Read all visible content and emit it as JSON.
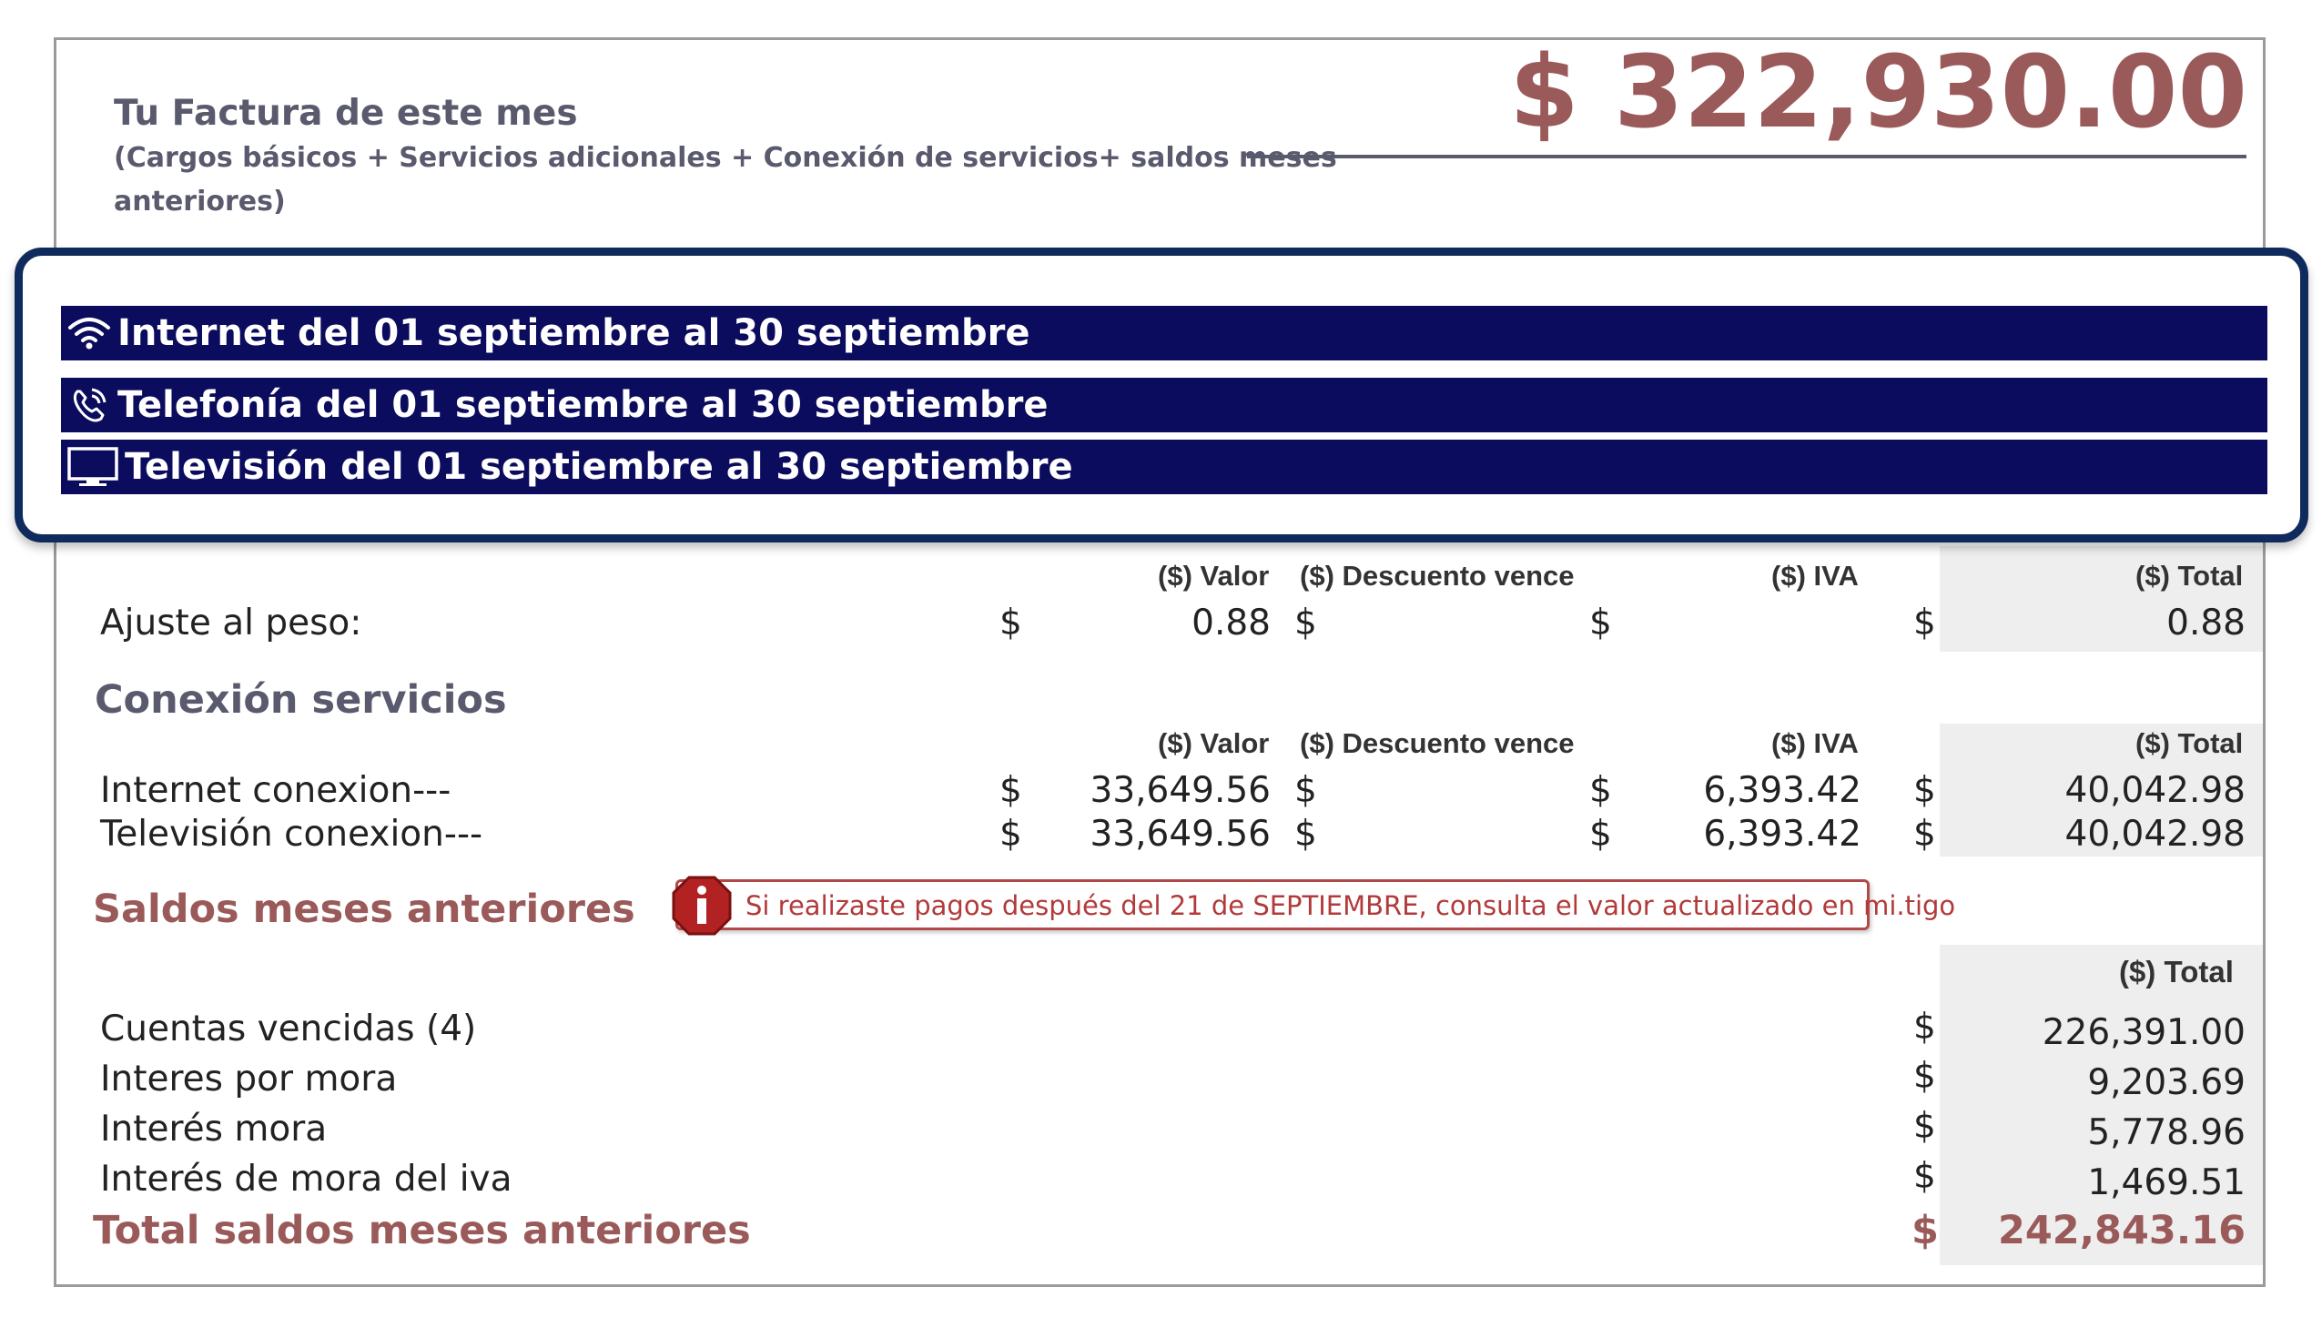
{
  "header": {
    "title": "Tu Factura de este mes",
    "subtitle_line1": "(Cargos básicos  +  Servicios adicionales + Conexión de servicios+ saldos meses",
    "subtitle_line2": "anteriores)",
    "total_amount": "$ 322,930.00"
  },
  "popup": {
    "services": [
      {
        "icon": "wifi-icon",
        "label": "Internet  del 01 septiembre al 30 septiembre"
      },
      {
        "icon": "phone-icon",
        "label": "Telefonía  del 01 septiembre al 30 septiembre"
      },
      {
        "icon": "tv-icon",
        "label": "Televisión del 01 septiembre al 30 septiembre"
      }
    ]
  },
  "columns": {
    "valor": "($) Valor",
    "descuento": "($) Descuento vence",
    "iva": "($) IVA",
    "total": "($) Total"
  },
  "ajuste": {
    "label": "Ajuste al peso:",
    "currency": "$",
    "valor": "0.88",
    "total": "0.88"
  },
  "conexion": {
    "title": "Conexión servicios",
    "currency": "$",
    "rows": [
      {
        "label": "Internet conexion---",
        "valor": "33,649.56",
        "iva": "6,393.42",
        "total": "40,042.98"
      },
      {
        "label": "Televisión conexion---",
        "valor": "33,649.56",
        "iva": "6,393.42",
        "total": "40,042.98"
      }
    ]
  },
  "saldos": {
    "title": "Saldos meses anteriores",
    "alert": "Si realizaste pagos después del 21 de SEPTIEMBRE, consulta el valor actualizado en mi.tigo",
    "currency": "$",
    "total_header": "($) Total",
    "rows": [
      {
        "label": "Cuentas vencidas (4)",
        "total": "226,391.00"
      },
      {
        "label": "Interes por mora",
        "total": "9,203.69"
      },
      {
        "label": "Interés mora",
        "total": "5,778.96"
      },
      {
        "label": "Interés de mora del iva",
        "total": "1,469.51"
      }
    ],
    "total_label": "Total saldos meses anteriores",
    "total_value": "242,843.16"
  },
  "colors": {
    "accent": "#9b5a5a",
    "band": "#0c0c5e",
    "popup_border": "#0f2a5c",
    "alert": "#b23a3a"
  }
}
